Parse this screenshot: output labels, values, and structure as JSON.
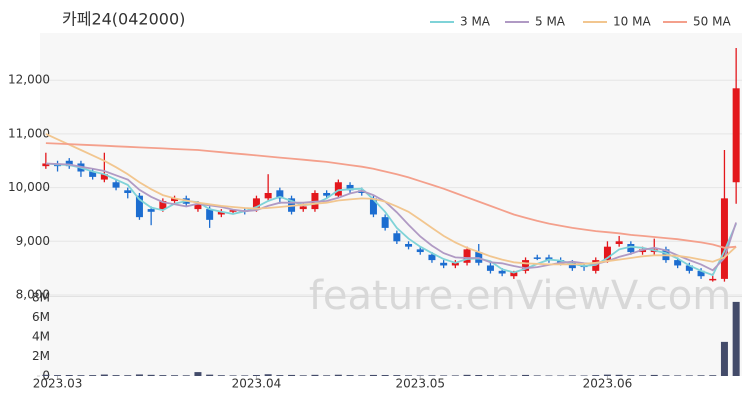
{
  "watermark": "feature.enViewV.com",
  "chart_data": [
    {
      "type": "candlestick",
      "title": "카페24(042000)",
      "categories": [
        null,
        null,
        null,
        null,
        null,
        null,
        null,
        null,
        null,
        null,
        null,
        null,
        null,
        null,
        null,
        null,
        null,
        null,
        null,
        null,
        null,
        null,
        null,
        null,
        null,
        null,
        null,
        null,
        null,
        null,
        null,
        null,
        null,
        null,
        null,
        null,
        null,
        null,
        null,
        null,
        null,
        null,
        null,
        null,
        null,
        null,
        null,
        null,
        null,
        null,
        null,
        null,
        null,
        null,
        null,
        null,
        null,
        null,
        null,
        null
      ],
      "open": [
        10400,
        10450,
        10500,
        10450,
        10300,
        10150,
        10100,
        9950,
        9850,
        9600,
        9600,
        9750,
        9800,
        9600,
        9600,
        9500,
        9550,
        9580,
        9600,
        9800,
        9950,
        9800,
        9600,
        9600,
        9900,
        9850,
        10050,
        9950,
        9800,
        9450,
        9150,
        8950,
        8850,
        8750,
        8600,
        8550,
        8600,
        8800,
        8550,
        8450,
        8350,
        8450,
        8700,
        8700,
        8650,
        8600,
        8550,
        8450,
        8650,
        8950,
        8950,
        8800,
        8800,
        8850,
        8650,
        8550,
        8450,
        8300,
        8300,
        10100
      ],
      "high": [
        10650,
        10500,
        10550,
        10500,
        10350,
        10650,
        10150,
        10000,
        9900,
        9650,
        9800,
        9850,
        9850,
        9750,
        9650,
        9600,
        9600,
        9620,
        9850,
        10250,
        10000,
        9850,
        9700,
        9950,
        9950,
        10150,
        10100,
        10000,
        9850,
        9500,
        9200,
        9000,
        8900,
        8800,
        8650,
        8650,
        8900,
        8950,
        8600,
        8500,
        8450,
        8700,
        8750,
        8750,
        8700,
        8650,
        8600,
        8700,
        9000,
        9100,
        9000,
        8900,
        9050,
        8900,
        8700,
        8600,
        8500,
        8400,
        10700,
        12600
      ],
      "low": [
        10350,
        10300,
        10350,
        10200,
        10150,
        10100,
        9950,
        9800,
        9400,
        9300,
        9550,
        9700,
        9650,
        9550,
        9250,
        9450,
        9500,
        9500,
        9550,
        9750,
        9700,
        9500,
        9550,
        9550,
        9800,
        9800,
        9900,
        9850,
        9450,
        9200,
        8950,
        8850,
        8750,
        8600,
        8500,
        8500,
        8550,
        8550,
        8400,
        8350,
        8300,
        8400,
        8650,
        8600,
        8550,
        8450,
        8450,
        8400,
        8600,
        8900,
        8750,
        8750,
        8750,
        8600,
        8500,
        8400,
        8300,
        8250,
        8250,
        9700
      ],
      "close": [
        10450,
        10400,
        10400,
        10300,
        10200,
        10250,
        10000,
        9900,
        9450,
        9550,
        9750,
        9800,
        9700,
        9700,
        9400,
        9550,
        9580,
        9550,
        9800,
        9900,
        9800,
        9550,
        9650,
        9900,
        9850,
        10100,
        9950,
        9900,
        9500,
        9250,
        9000,
        8900,
        8800,
        8650,
        8550,
        8600,
        8850,
        8600,
        8450,
        8400,
        8420,
        8650,
        8680,
        8650,
        8600,
        8500,
        8520,
        8650,
        8900,
        9000,
        8800,
        8850,
        8850,
        8650,
        8550,
        8450,
        8350,
        8300,
        9800,
        11850
      ],
      "up_color": "#e3171c",
      "down_color": "#1c6dd0",
      "series": [
        {
          "name": "3 MA",
          "color": "#7fd3d8",
          "values": [
            10450,
            10430,
            10420,
            10370,
            10300,
            10250,
            10150,
            10050,
            9780,
            9630,
            9580,
            9700,
            9750,
            9730,
            9600,
            9550,
            9510,
            9560,
            9640,
            9750,
            9830,
            9750,
            9670,
            9700,
            9800,
            9950,
            9970,
            9980,
            9780,
            9550,
            9250,
            9050,
            8900,
            8780,
            8670,
            8600,
            8670,
            8680,
            8630,
            8480,
            8420,
            8490,
            8580,
            8660,
            8640,
            8580,
            8540,
            8560,
            8690,
            8850,
            8900,
            8880,
            8830,
            8780,
            8680,
            8550,
            8450,
            8370,
            8820,
            9330
          ]
        },
        {
          "name": "5 MA",
          "color": "#b09ac4",
          "values": [
            10450,
            10440,
            10430,
            10390,
            10350,
            10310,
            10230,
            10150,
            9960,
            9830,
            9730,
            9690,
            9650,
            9700,
            9670,
            9640,
            9590,
            9560,
            9580,
            9660,
            9720,
            9720,
            9720,
            9740,
            9750,
            9810,
            9890,
            9940,
            9860,
            9740,
            9540,
            9310,
            9090,
            8920,
            8780,
            8700,
            8690,
            8690,
            8610,
            8590,
            8540,
            8500,
            8520,
            8560,
            8600,
            8620,
            8590,
            8580,
            8630,
            8710,
            8770,
            8840,
            8880,
            8830,
            8740,
            8650,
            8570,
            8460,
            8690,
            9350
          ]
        },
        {
          "name": "10 MA",
          "color": "#f2c68f",
          "values": [
            11000,
            10900,
            10800,
            10700,
            10600,
            10500,
            10380,
            10250,
            10100,
            9970,
            9860,
            9800,
            9760,
            9720,
            9690,
            9660,
            9640,
            9620,
            9610,
            9620,
            9640,
            9660,
            9680,
            9700,
            9720,
            9760,
            9780,
            9800,
            9790,
            9740,
            9650,
            9550,
            9400,
            9250,
            9100,
            8980,
            8880,
            8800,
            8720,
            8660,
            8610,
            8590,
            8580,
            8570,
            8570,
            8570,
            8580,
            8600,
            8630,
            8660,
            8690,
            8720,
            8740,
            8740,
            8730,
            8700,
            8660,
            8620,
            8700,
            8900
          ]
        },
        {
          "name": "50 MA",
          "color": "#f4a08c",
          "values": [
            10830,
            10820,
            10810,
            10800,
            10790,
            10780,
            10770,
            10760,
            10750,
            10740,
            10730,
            10720,
            10710,
            10700,
            10680,
            10660,
            10640,
            10620,
            10600,
            10580,
            10560,
            10540,
            10520,
            10500,
            10480,
            10450,
            10420,
            10390,
            10350,
            10300,
            10250,
            10190,
            10120,
            10050,
            9980,
            9900,
            9820,
            9740,
            9660,
            9580,
            9500,
            9440,
            9380,
            9330,
            9290,
            9250,
            9220,
            9190,
            9170,
            9150,
            9120,
            9100,
            9080,
            9060,
            9040,
            9010,
            8980,
            8940,
            8880,
            8900
          ]
        }
      ],
      "ylim": [
        8000,
        12880
      ],
      "yticks": [
        {
          "value": 8000,
          "label": "8,000"
        },
        {
          "value": 9000,
          "label": "9,000"
        },
        {
          "value": 10000,
          "label": "10,000"
        },
        {
          "value": 11000,
          "label": "11,000"
        },
        {
          "value": 12000,
          "label": "12,000"
        }
      ],
      "grid": true,
      "legend": "top-right"
    },
    {
      "type": "bar",
      "color": "#434b6a",
      "values": [
        120000,
        90000,
        100000,
        80000,
        90000,
        150000,
        90000,
        80000,
        160000,
        120000,
        90000,
        80000,
        70000,
        400000,
        140000,
        80000,
        60000,
        60000,
        100000,
        180000,
        90000,
        110000,
        70000,
        120000,
        70000,
        130000,
        90000,
        70000,
        110000,
        100000,
        90000,
        70000,
        60000,
        70000,
        60000,
        60000,
        120000,
        100000,
        80000,
        60000,
        60000,
        110000,
        60000,
        50000,
        50000,
        60000,
        50000,
        90000,
        140000,
        120000,
        80000,
        70000,
        110000,
        70000,
        60000,
        60000,
        70000,
        80000,
        3500000,
        7600000
      ],
      "ylim": [
        0,
        8000000
      ],
      "yticks": [
        0,
        {
          "value": 2000000,
          "label": "2M"
        },
        {
          "value": 4000000,
          "label": "4M"
        },
        {
          "value": 6000000,
          "label": "6M"
        },
        {
          "value": 8000000,
          "label": "8M"
        }
      ],
      "xticks": [
        {
          "value": 1,
          "label": "2023.03"
        },
        {
          "value": 18,
          "label": "2023.04"
        },
        {
          "value": 32,
          "label": "2023.05"
        },
        {
          "value": 48,
          "label": "2023.06"
        }
      ]
    }
  ]
}
